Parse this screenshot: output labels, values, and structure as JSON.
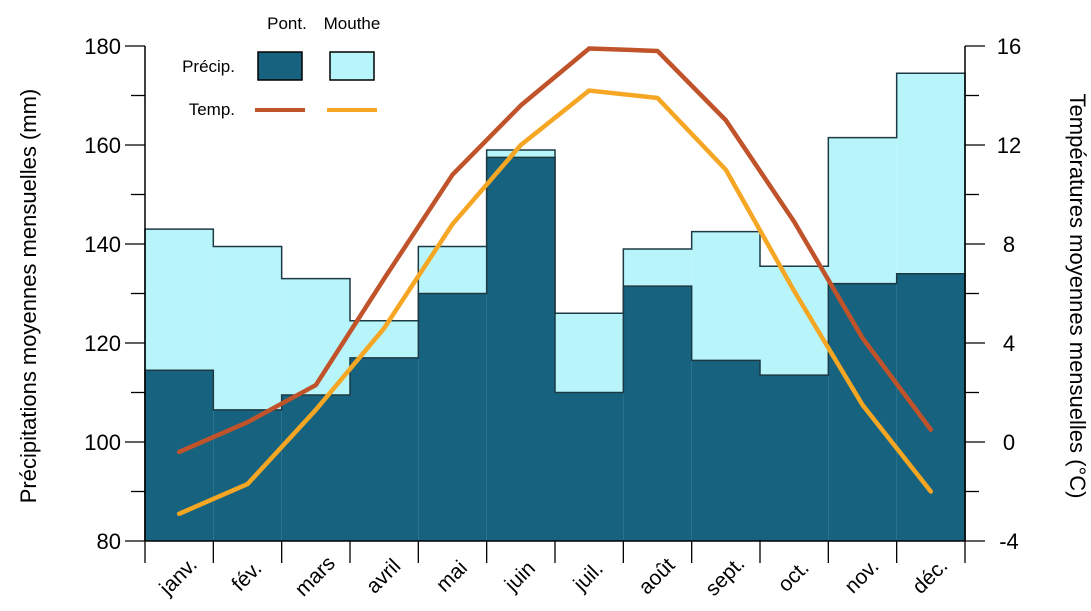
{
  "chart_data": {
    "type": "bar+line",
    "categories": [
      "janv.",
      "fév.",
      "mars",
      "avril",
      "mai",
      "juin",
      "juil.",
      "août",
      "sept.",
      "oct.",
      "nov.",
      "déc."
    ],
    "series": [
      {
        "name": "Pont.",
        "kind": "precip",
        "axis": "left",
        "color": "#17627e",
        "values": [
          114.5,
          106.5,
          109.5,
          117,
          130,
          157.5,
          110,
          131.5,
          116.5,
          113.5,
          132,
          134
        ]
      },
      {
        "name": "Mouthe",
        "kind": "precip",
        "axis": "left",
        "color": "#b8f5fa",
        "values": [
          143,
          139.5,
          133,
          124.5,
          139.5,
          159,
          126,
          139,
          142.5,
          135.5,
          161.5,
          174.5
        ]
      },
      {
        "name": "Pont.",
        "kind": "temp",
        "axis": "right",
        "color": "#c0532a",
        "values": [
          -0.4,
          0.8,
          2.3,
          6.6,
          10.8,
          13.6,
          15.9,
          15.8,
          13,
          8.9,
          4.2,
          0.5
        ]
      },
      {
        "name": "Mouthe",
        "kind": "temp",
        "axis": "right",
        "color": "#f5a623",
        "values": [
          -2.9,
          -1.7,
          1.3,
          4.6,
          8.8,
          12,
          14.2,
          13.9,
          11,
          6.1,
          1.5,
          -2
        ]
      }
    ],
    "ylabel": "Précipitations moyennes mensuelles (mm)",
    "y2label": "Températures moyennes mensuelles (°C)",
    "ylim": [
      80,
      180
    ],
    "y2lim": [
      -4,
      16
    ],
    "yticks": [
      "80",
      "100",
      "120",
      "140",
      "160",
      "180"
    ],
    "y2ticks": [
      "-4",
      "0",
      "4",
      "8",
      "12",
      "16"
    ],
    "legend": {
      "col1": "Pont.",
      "col2": "Mouthe",
      "row_precip": "Précip.",
      "row_temp": "Temp.",
      "placement": "top-left"
    },
    "grid": false
  }
}
